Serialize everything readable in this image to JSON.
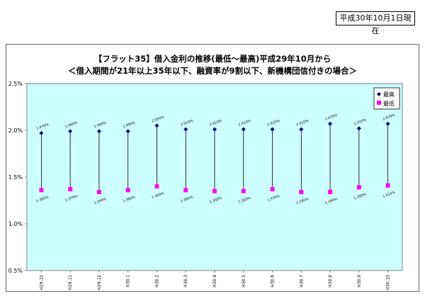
{
  "header": {
    "as_of": "平成30年10月1日現在"
  },
  "chart_data": {
    "type": "line",
    "title": "【フラット35】借入金利の推移(最低～最高)平成29年10月から",
    "subtitle": "＜借入期間が21年以上35年以下、融資率が9割以下、新機構団信付きの場合＞",
    "categories": [
      "H29.10",
      "H29.11",
      "H29.12",
      "H30.1",
      "H30.2",
      "H30.3",
      "H30.4",
      "H30.5",
      "H30.6",
      "H30.7",
      "H30.8",
      "H30.9",
      "H30.10"
    ],
    "series": [
      {
        "name": "最高",
        "color": "#000080",
        "marker": "diamond",
        "values": [
          1.97,
          1.99,
          1.99,
          1.99,
          2.05,
          2.01,
          2.01,
          2.01,
          2.01,
          2.01,
          2.07,
          2.02,
          2.07
        ],
        "labels": [
          "1.970%",
          "1.990%",
          "1.990%",
          "1.990%",
          "2.050%",
          "2.010%",
          "2.010%",
          "2.010%",
          "2.010%",
          "2.010%",
          "2.070%",
          "2.020%",
          "2.070%"
        ]
      },
      {
        "name": "最低",
        "color": "#ff00ff",
        "marker": "square",
        "values": [
          1.36,
          1.37,
          1.34,
          1.36,
          1.4,
          1.36,
          1.35,
          1.35,
          1.37,
          1.34,
          1.34,
          1.39,
          1.41
        ],
        "labels": [
          "1.360%",
          "1.370%",
          "1.340%",
          "1.360%",
          "1.400%",
          "1.360%",
          "1.350%",
          "1.350%",
          "1.370%",
          "1.340%",
          "1.340%",
          "1.390%",
          "1.410%"
        ]
      }
    ],
    "yticks": [
      "0.5%",
      "1.0%",
      "1.5%",
      "2.0%",
      "2.5%"
    ],
    "ylim": [
      0.5,
      2.5
    ],
    "legend_position": "top-right",
    "grid": false
  }
}
